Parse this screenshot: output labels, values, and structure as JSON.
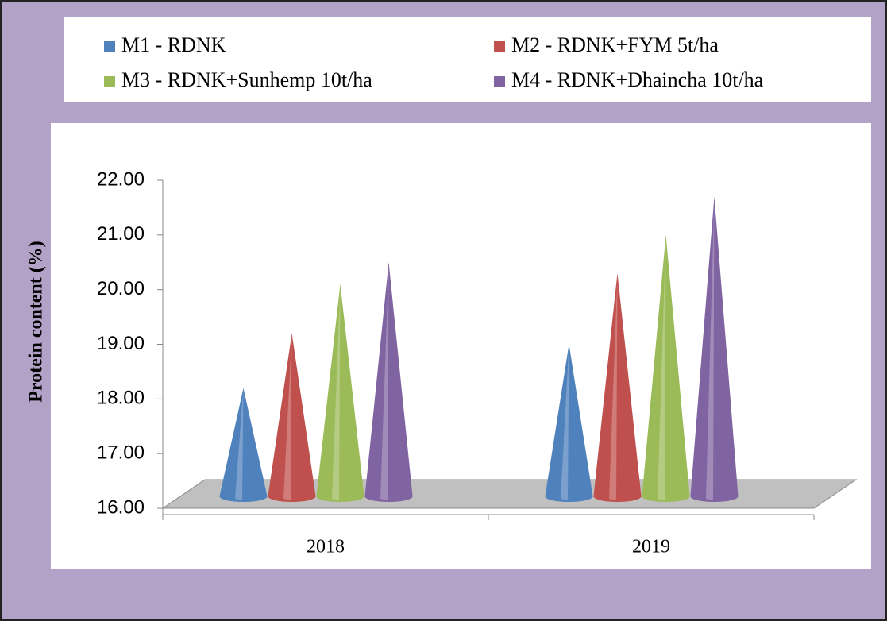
{
  "chart_data": {
    "type": "cone3d",
    "y_axis_label": "Protein content (%)",
    "categories": [
      "2018",
      "2019"
    ],
    "series": [
      {
        "name": "M1 - RDNK",
        "color": "#4f81bd",
        "values": [
          18.2,
          19.0
        ]
      },
      {
        "name": "M2 - RDNK+FYM 5t/ha",
        "color": "#c0504d",
        "values": [
          19.2,
          20.3
        ]
      },
      {
        "name": "M3 - RDNK+Sunhemp 10t/ha",
        "color": "#9bbb59",
        "values": [
          20.1,
          21.0
        ]
      },
      {
        "name": "M4 - RDNK+Dhaincha 10t/ha",
        "color": "#8064a2",
        "values": [
          20.5,
          21.7
        ]
      }
    ],
    "ylim": [
      16,
      22
    ],
    "yticks": [
      {
        "value": 16,
        "label": "16.00"
      },
      {
        "value": 17,
        "label": "17.00"
      },
      {
        "value": 18,
        "label": "18.00"
      },
      {
        "value": 19,
        "label": "19.00"
      },
      {
        "value": 20,
        "label": "20.00"
      },
      {
        "value": 21,
        "label": "21.00"
      },
      {
        "value": 22,
        "label": "22.00"
      }
    ],
    "legend": "top"
  }
}
